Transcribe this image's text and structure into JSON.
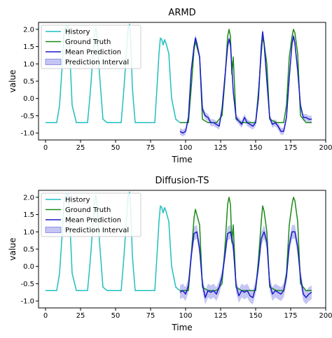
{
  "chart_data": [
    {
      "type": "line",
      "title": "ARMD",
      "xlabel": "Time",
      "ylabel": "value",
      "xlim": [
        -5,
        200
      ],
      "ylim": [
        -1.2,
        2.2
      ],
      "xticks": [
        "0",
        "25",
        "50",
        "75",
        "100",
        "125",
        "150",
        "175",
        "200"
      ],
      "yticks": [
        "-1.0",
        "-0.5",
        "0.0",
        "0.5",
        "1.0",
        "1.5",
        "2.0"
      ],
      "legend_position": "top-left",
      "series": [
        {
          "name": "History",
          "color": "#1fbfbf",
          "x": [
            0,
            8,
            10,
            12,
            13,
            14,
            16,
            17,
            19,
            22,
            25,
            30,
            32,
            34,
            35,
            36,
            37,
            38,
            41,
            44,
            48,
            54,
            56,
            58,
            59,
            60,
            61,
            62,
            64,
            66,
            72,
            78,
            80,
            81,
            82,
            83,
            84,
            85,
            86,
            88,
            90,
            93,
            96
          ],
          "values": [
            -0.7,
            -0.7,
            -0.2,
            1.0,
            1.8,
            2.05,
            2.1,
            1.6,
            -0.2,
            -0.7,
            -0.7,
            -0.7,
            0.2,
            1.3,
            1.9,
            2.05,
            1.7,
            1.0,
            -0.6,
            -0.7,
            -0.7,
            -0.7,
            0.3,
            1.5,
            2.05,
            2.15,
            1.5,
            0.3,
            -0.7,
            -0.7,
            -0.7,
            -0.7,
            0.6,
            1.3,
            1.75,
            1.7,
            1.55,
            1.7,
            1.6,
            1.3,
            0.0,
            -0.6,
            -0.7
          ]
        },
        {
          "name": "Ground Truth",
          "color": "#1a8a1a",
          "x": [
            96,
            100,
            102,
            104,
            106,
            107,
            108,
            110,
            112,
            116,
            122,
            126,
            128,
            130,
            131,
            132,
            133,
            134,
            136,
            140,
            146,
            150,
            152,
            154,
            155,
            156,
            158,
            160,
            165,
            170,
            172,
            174,
            176,
            177,
            178,
            180,
            182,
            186,
            190
          ],
          "values": [
            -0.7,
            -0.7,
            -0.7,
            0.3,
            1.4,
            1.65,
            1.5,
            1.2,
            -0.6,
            -0.7,
            -0.7,
            -0.5,
            0.5,
            1.8,
            2.0,
            1.8,
            0.7,
            1.2,
            -0.6,
            -0.7,
            -0.7,
            -0.7,
            0.2,
            1.3,
            1.75,
            1.6,
            1.0,
            -0.6,
            -0.7,
            -0.7,
            -0.2,
            1.2,
            1.8,
            2.0,
            1.9,
            1.3,
            -0.5,
            -0.7,
            -0.7
          ]
        },
        {
          "name": "Mean Prediction",
          "color": "#1a1acc",
          "x": [
            96,
            98,
            100,
            102,
            104,
            106,
            107,
            108,
            110,
            112,
            114,
            116,
            118,
            120,
            124,
            126,
            128,
            130,
            131,
            132,
            133,
            134,
            136,
            138,
            140,
            142,
            144,
            146,
            148,
            150,
            152,
            154,
            155,
            156,
            158,
            160,
            162,
            164,
            166,
            168,
            170,
            172,
            174,
            176,
            177,
            178,
            180,
            182,
            184,
            186,
            188,
            190
          ],
          "values": [
            -0.95,
            -1.0,
            -0.95,
            -0.55,
            0.8,
            1.5,
            1.75,
            1.6,
            1.2,
            -0.3,
            -0.5,
            -0.55,
            -0.7,
            -0.7,
            -0.8,
            -0.3,
            0.6,
            1.5,
            1.72,
            1.55,
            0.9,
            0.2,
            -0.55,
            -0.65,
            -0.75,
            -0.55,
            -0.7,
            -0.75,
            -0.8,
            -0.7,
            0.0,
            1.5,
            1.93,
            1.6,
            0.5,
            -0.55,
            -0.75,
            -0.7,
            -0.8,
            -0.95,
            -0.95,
            -0.55,
            0.6,
            1.6,
            1.8,
            1.6,
            0.8,
            -0.2,
            -0.55,
            -0.55,
            -0.6,
            -0.6
          ]
        },
        {
          "name": "Prediction Interval",
          "color": "#7f7fe6",
          "band_width": 0.1
        }
      ]
    },
    {
      "type": "line",
      "title": "Diffusion-TS",
      "xlabel": "Time",
      "ylabel": "value",
      "xlim": [
        -5,
        200
      ],
      "ylim": [
        -1.2,
        2.2
      ],
      "xticks": [
        "0",
        "25",
        "50",
        "75",
        "100",
        "125",
        "150",
        "175",
        "200"
      ],
      "yticks": [
        "-1.0",
        "-0.5",
        "0.0",
        "0.5",
        "1.0",
        "1.5",
        "2.0"
      ],
      "legend_position": "top-left",
      "series": [
        {
          "name": "History",
          "color": "#1fbfbf",
          "x": [
            0,
            8,
            10,
            12,
            13,
            14,
            16,
            17,
            19,
            22,
            25,
            30,
            32,
            34,
            35,
            36,
            37,
            38,
            41,
            44,
            48,
            54,
            56,
            58,
            59,
            60,
            61,
            62,
            64,
            66,
            72,
            78,
            80,
            81,
            82,
            83,
            84,
            85,
            86,
            88,
            90,
            93,
            96
          ],
          "values": [
            -0.7,
            -0.7,
            -0.2,
            1.0,
            1.8,
            2.05,
            2.1,
            1.6,
            -0.2,
            -0.7,
            -0.7,
            -0.7,
            0.2,
            1.3,
            1.9,
            2.05,
            1.7,
            1.0,
            -0.6,
            -0.7,
            -0.7,
            -0.7,
            0.3,
            1.5,
            2.05,
            2.15,
            1.5,
            0.3,
            -0.7,
            -0.7,
            -0.7,
            -0.7,
            0.6,
            1.3,
            1.75,
            1.7,
            1.55,
            1.7,
            1.6,
            1.3,
            0.0,
            -0.6,
            -0.7
          ]
        },
        {
          "name": "Ground Truth",
          "color": "#1a8a1a",
          "x": [
            96,
            100,
            102,
            104,
            106,
            107,
            108,
            110,
            112,
            116,
            122,
            126,
            128,
            130,
            131,
            132,
            133,
            134,
            136,
            140,
            146,
            150,
            152,
            154,
            155,
            156,
            158,
            160,
            165,
            170,
            172,
            174,
            176,
            177,
            178,
            180,
            182,
            186,
            190
          ],
          "values": [
            -0.7,
            -0.7,
            -0.7,
            0.3,
            1.4,
            1.65,
            1.5,
            1.2,
            -0.6,
            -0.7,
            -0.7,
            -0.5,
            0.5,
            1.8,
            2.0,
            1.8,
            0.7,
            1.2,
            -0.6,
            -0.7,
            -0.7,
            -0.7,
            0.2,
            1.3,
            1.75,
            1.6,
            1.0,
            -0.6,
            -0.7,
            -0.7,
            -0.2,
            1.2,
            1.8,
            2.0,
            1.9,
            1.3,
            -0.5,
            -0.7,
            -0.7
          ]
        },
        {
          "name": "Mean Prediction",
          "color": "#1a1acc",
          "x": [
            96,
            98,
            100,
            102,
            104,
            106,
            108,
            110,
            112,
            114,
            116,
            118,
            120,
            122,
            124,
            126,
            128,
            130,
            132,
            134,
            136,
            138,
            140,
            142,
            144,
            146,
            148,
            150,
            152,
            154,
            156,
            158,
            160,
            162,
            164,
            166,
            168,
            170,
            172,
            174,
            176,
            178,
            180,
            182,
            184,
            186,
            188,
            190
          ],
          "values": [
            -0.75,
            -0.7,
            -0.8,
            -0.55,
            0.3,
            0.95,
            1.0,
            0.5,
            -0.5,
            -0.9,
            -0.7,
            -0.75,
            -0.7,
            -0.8,
            -0.6,
            -0.3,
            0.3,
            0.95,
            1.0,
            0.6,
            -0.55,
            -0.85,
            -0.7,
            -0.75,
            -0.7,
            -0.85,
            -0.9,
            -0.6,
            0.0,
            0.8,
            1.0,
            0.7,
            -0.5,
            -0.8,
            -0.7,
            -0.75,
            -0.8,
            -0.7,
            -0.3,
            0.6,
            1.0,
            1.0,
            0.55,
            -0.3,
            -0.8,
            -0.9,
            -0.8,
            -0.75
          ]
        },
        {
          "name": "Prediction Interval",
          "color": "#7f7fe6",
          "band_width": 0.2
        }
      ]
    }
  ]
}
